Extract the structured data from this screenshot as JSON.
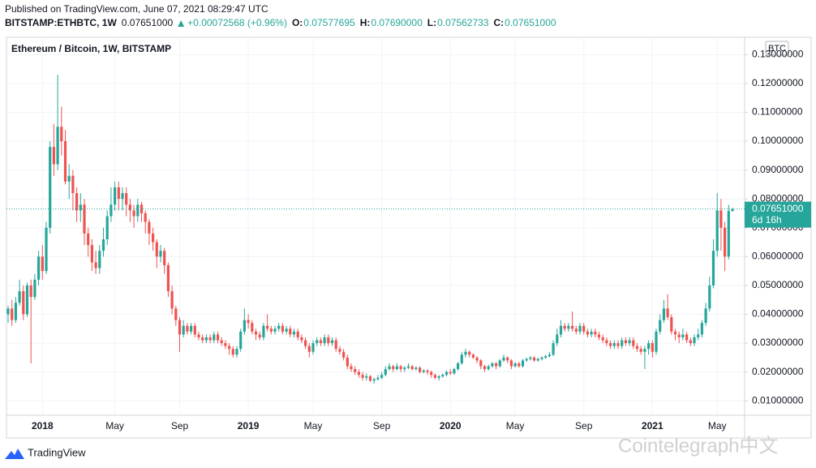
{
  "header": {
    "published": "Published on TradingView.com, June 07, 2021 08:29:47 UTC",
    "symbol": "BITSTAMP:ETHBTC, 1W",
    "last": "0.07651000",
    "change": "+0.00072568 (+0.96%)",
    "ohlc": [
      {
        "label": "O:",
        "value": "0.07577695"
      },
      {
        "label": "H:",
        "value": "0.07690000"
      },
      {
        "label": "L:",
        "value": "0.07562733"
      },
      {
        "label": "C:",
        "value": "0.07651000"
      }
    ]
  },
  "footer": {
    "brand": "TradingView",
    "watermark": "Cointelegraph中文"
  },
  "chart_data": {
    "type": "candlestick",
    "title": "Ethereum / Bitcoin, 1W, BITSTAMP",
    "currency": "BTC",
    "price_label": "0.07651000",
    "countdown": "6d 16h",
    "colors": {
      "up": "#26a69a",
      "down": "#ef5350"
    },
    "grid": true,
    "ylim": [
      0.005,
      0.136
    ],
    "yticks": [
      {
        "value": 0.01,
        "label": "0.01000000"
      },
      {
        "value": 0.02,
        "label": "0.02000000"
      },
      {
        "value": 0.03,
        "label": "0.03000000"
      },
      {
        "value": 0.04,
        "label": "0.04000000"
      },
      {
        "value": 0.05,
        "label": "0.05000000"
      },
      {
        "value": 0.06,
        "label": "0.06000000"
      },
      {
        "value": 0.07,
        "label": "0.07000000"
      },
      {
        "value": 0.08,
        "label": "0.08000000"
      },
      {
        "value": 0.09,
        "label": "0.09000000"
      },
      {
        "value": 0.1,
        "label": "0.10000000"
      },
      {
        "value": 0.11,
        "label": "0.11000000"
      },
      {
        "value": 0.12,
        "label": "0.12000000"
      },
      {
        "value": 0.13,
        "label": "0.13000000"
      }
    ],
    "xticks": [
      {
        "value": 9,
        "label": "2018"
      },
      {
        "value": 28,
        "label": "May"
      },
      {
        "value": 45,
        "label": "Sep"
      },
      {
        "value": 63,
        "label": "2019"
      },
      {
        "value": 80,
        "label": "May"
      },
      {
        "value": 98,
        "label": "Sep"
      },
      {
        "value": 116,
        "label": "2020"
      },
      {
        "value": 133,
        "label": "May"
      },
      {
        "value": 151,
        "label": "Sep"
      },
      {
        "value": 169,
        "label": "2021"
      },
      {
        "value": 186,
        "label": "May"
      }
    ],
    "categories": [
      null,
      null,
      null,
      null,
      null,
      null,
      null,
      null,
      null,
      null,
      null,
      null,
      null,
      null,
      null,
      null,
      null,
      null,
      null,
      null,
      null,
      null,
      null,
      null,
      null,
      null,
      null,
      null,
      null,
      null,
      null,
      null,
      null,
      null,
      null,
      null,
      null,
      null,
      null,
      null,
      null,
      null,
      null,
      null,
      null,
      null,
      null,
      null,
      null,
      null,
      null,
      null,
      null,
      null,
      null,
      null,
      null,
      null,
      null,
      null,
      null,
      null,
      null,
      null,
      null,
      null,
      null,
      null,
      null,
      null,
      null,
      null,
      null,
      null,
      null,
      null,
      null,
      null,
      null,
      null,
      null,
      null,
      null,
      null,
      null,
      null,
      null,
      null,
      null,
      null,
      null,
      null,
      null,
      null,
      null,
      null,
      null,
      null,
      null,
      null,
      null,
      null,
      null,
      null,
      null,
      null,
      null,
      null,
      null,
      null,
      null,
      null,
      null,
      null,
      null,
      null,
      null,
      null,
      null,
      null,
      null,
      null,
      null,
      null,
      null,
      null,
      null,
      null,
      null,
      null,
      null,
      null,
      null,
      null,
      null,
      null,
      null,
      null,
      null,
      null,
      null,
      null,
      null,
      null,
      null,
      null,
      null,
      null,
      null,
      null,
      null,
      null,
      null,
      null,
      null,
      null,
      null,
      null,
      null,
      null,
      null,
      null,
      null,
      null,
      null,
      null,
      null,
      null,
      null,
      null,
      null,
      null,
      null,
      null,
      null,
      null,
      null,
      null,
      null,
      null,
      null,
      null,
      null,
      null,
      null,
      null,
      null,
      null,
      null,
      null,
      null
    ],
    "open": [
      0.04,
      0.042,
      0.038,
      0.044,
      0.048,
      0.04,
      0.05,
      0.046,
      0.052,
      0.06,
      0.055,
      0.07,
      0.098,
      0.092,
      0.105,
      0.1,
      0.086,
      0.088,
      0.082,
      0.076,
      0.078,
      0.068,
      0.064,
      0.058,
      0.056,
      0.062,
      0.066,
      0.074,
      0.078,
      0.084,
      0.08,
      0.082,
      0.078,
      0.076,
      0.074,
      0.078,
      0.075,
      0.072,
      0.068,
      0.065,
      0.06,
      0.062,
      0.057,
      0.048,
      0.042,
      0.038,
      0.033,
      0.036,
      0.034,
      0.036,
      0.033,
      0.032,
      0.031,
      0.032,
      0.031,
      0.033,
      0.031,
      0.03,
      0.029,
      0.028,
      0.026,
      0.028,
      0.034,
      0.038,
      0.037,
      0.034,
      0.033,
      0.032,
      0.036,
      0.035,
      0.034,
      0.035,
      0.036,
      0.034,
      0.035,
      0.033,
      0.034,
      0.032,
      0.031,
      0.029,
      0.027,
      0.03,
      0.031,
      0.03,
      0.032,
      0.03,
      0.031,
      0.028,
      0.027,
      0.025,
      0.022,
      0.021,
      0.02,
      0.019,
      0.018,
      0.0185,
      0.017,
      0.0175,
      0.018,
      0.019,
      0.021,
      0.022,
      0.021,
      0.022,
      0.021,
      0.0215,
      0.022,
      0.021,
      0.0215,
      0.02,
      0.0205,
      0.02,
      0.019,
      0.018,
      0.0185,
      0.019,
      0.02,
      0.0195,
      0.021,
      0.023,
      0.026,
      0.027,
      0.026,
      0.025,
      0.024,
      0.022,
      0.021,
      0.022,
      0.023,
      0.022,
      0.024,
      0.025,
      0.024,
      0.022,
      0.023,
      0.022,
      0.024,
      0.0245,
      0.025,
      0.024,
      0.0245,
      0.025,
      0.0255,
      0.026,
      0.03,
      0.033,
      0.036,
      0.035,
      0.036,
      0.035,
      0.034,
      0.036,
      0.034,
      0.033,
      0.034,
      0.033,
      0.032,
      0.031,
      0.03,
      0.029,
      0.03,
      0.029,
      0.031,
      0.03,
      0.031,
      0.029,
      0.028,
      0.027,
      0.028,
      0.03,
      0.027,
      0.034,
      0.038,
      0.042,
      0.039,
      0.034,
      0.033,
      0.032,
      0.033,
      0.031,
      0.03,
      0.032,
      0.033,
      0.037,
      0.042,
      0.05,
      0.062,
      0.076,
      0.07,
      0.06,
      0.07577695
    ],
    "high": [
      0.043,
      0.045,
      0.046,
      0.052,
      0.05,
      0.051,
      0.052,
      0.054,
      0.062,
      0.064,
      0.072,
      0.1,
      0.106,
      0.123,
      0.112,
      0.104,
      0.092,
      0.09,
      0.084,
      0.082,
      0.08,
      0.07,
      0.066,
      0.062,
      0.064,
      0.07,
      0.076,
      0.084,
      0.086,
      0.086,
      0.084,
      0.084,
      0.08,
      0.078,
      0.08,
      0.079,
      0.076,
      0.073,
      0.07,
      0.066,
      0.064,
      0.063,
      0.058,
      0.05,
      0.043,
      0.039,
      0.038,
      0.037,
      0.037,
      0.037,
      0.034,
      0.033,
      0.033,
      0.033,
      0.034,
      0.034,
      0.032,
      0.031,
      0.03,
      0.029,
      0.029,
      0.035,
      0.042,
      0.04,
      0.038,
      0.035,
      0.034,
      0.037,
      0.04,
      0.036,
      0.036,
      0.037,
      0.037,
      0.036,
      0.036,
      0.035,
      0.035,
      0.033,
      0.032,
      0.03,
      0.031,
      0.032,
      0.032,
      0.033,
      0.033,
      0.032,
      0.032,
      0.029,
      0.028,
      0.026,
      0.023,
      0.022,
      0.021,
      0.02,
      0.0195,
      0.019,
      0.018,
      0.019,
      0.02,
      0.022,
      0.023,
      0.0225,
      0.023,
      0.0225,
      0.022,
      0.023,
      0.0225,
      0.022,
      0.022,
      0.021,
      0.021,
      0.0205,
      0.0195,
      0.019,
      0.0195,
      0.0205,
      0.021,
      0.0215,
      0.0235,
      0.027,
      0.028,
      0.0275,
      0.0265,
      0.0255,
      0.0245,
      0.0225,
      0.0225,
      0.0235,
      0.0235,
      0.0245,
      0.026,
      0.0255,
      0.0245,
      0.0235,
      0.0235,
      0.0245,
      0.025,
      0.0255,
      0.0255,
      0.025,
      0.0255,
      0.026,
      0.027,
      0.031,
      0.035,
      0.038,
      0.037,
      0.037,
      0.041,
      0.036,
      0.037,
      0.037,
      0.035,
      0.035,
      0.035,
      0.034,
      0.033,
      0.032,
      0.031,
      0.031,
      0.031,
      0.032,
      0.032,
      0.032,
      0.032,
      0.03,
      0.029,
      0.029,
      0.031,
      0.031,
      0.035,
      0.04,
      0.045,
      0.047,
      0.04,
      0.035,
      0.034,
      0.035,
      0.034,
      0.032,
      0.033,
      0.035,
      0.038,
      0.044,
      0.053,
      0.066,
      0.082,
      0.08,
      0.072,
      0.078,
      0.0769
    ],
    "low": [
      0.037,
      0.036,
      0.037,
      0.043,
      0.038,
      0.039,
      0.023,
      0.045,
      0.05,
      0.052,
      0.054,
      0.068,
      0.088,
      0.09,
      0.095,
      0.085,
      0.08,
      0.076,
      0.072,
      0.072,
      0.064,
      0.06,
      0.055,
      0.054,
      0.054,
      0.06,
      0.064,
      0.072,
      0.076,
      0.076,
      0.076,
      0.074,
      0.072,
      0.07,
      0.072,
      0.072,
      0.068,
      0.064,
      0.062,
      0.056,
      0.058,
      0.054,
      0.046,
      0.04,
      0.036,
      0.027,
      0.032,
      0.033,
      0.033,
      0.032,
      0.031,
      0.03,
      0.03,
      0.03,
      0.03,
      0.03,
      0.029,
      0.028,
      0.026,
      0.025,
      0.025,
      0.027,
      0.033,
      0.035,
      0.033,
      0.031,
      0.031,
      0.031,
      0.034,
      0.033,
      0.033,
      0.034,
      0.033,
      0.033,
      0.032,
      0.032,
      0.031,
      0.03,
      0.028,
      0.025,
      0.026,
      0.029,
      0.029,
      0.029,
      0.029,
      0.029,
      0.027,
      0.026,
      0.024,
      0.021,
      0.02,
      0.019,
      0.018,
      0.017,
      0.017,
      0.0165,
      0.016,
      0.017,
      0.0175,
      0.0185,
      0.0205,
      0.02,
      0.0205,
      0.02,
      0.02,
      0.021,
      0.0205,
      0.0205,
      0.0195,
      0.0195,
      0.019,
      0.018,
      0.0175,
      0.017,
      0.018,
      0.0185,
      0.019,
      0.019,
      0.0205,
      0.0225,
      0.025,
      0.025,
      0.0245,
      0.023,
      0.021,
      0.02,
      0.0205,
      0.0215,
      0.021,
      0.0215,
      0.0235,
      0.023,
      0.021,
      0.0215,
      0.0215,
      0.0215,
      0.0235,
      0.024,
      0.0235,
      0.0235,
      0.024,
      0.0245,
      0.025,
      0.0255,
      0.029,
      0.032,
      0.034,
      0.034,
      0.034,
      0.033,
      0.033,
      0.033,
      0.032,
      0.032,
      0.032,
      0.031,
      0.03,
      0.029,
      0.028,
      0.028,
      0.028,
      0.028,
      0.029,
      0.029,
      0.028,
      0.027,
      0.026,
      0.021,
      0.026,
      0.025,
      0.026,
      0.033,
      0.037,
      0.038,
      0.033,
      0.031,
      0.03,
      0.031,
      0.03,
      0.029,
      0.029,
      0.031,
      0.032,
      0.036,
      0.041,
      0.049,
      0.06,
      0.062,
      0.055,
      0.059,
      0.07562733
    ],
    "close": [
      0.042,
      0.038,
      0.044,
      0.048,
      0.04,
      0.05,
      0.046,
      0.052,
      0.06,
      0.055,
      0.07,
      0.098,
      0.092,
      0.105,
      0.1,
      0.086,
      0.088,
      0.082,
      0.076,
      0.078,
      0.068,
      0.064,
      0.058,
      0.056,
      0.062,
      0.066,
      0.074,
      0.078,
      0.084,
      0.08,
      0.082,
      0.078,
      0.076,
      0.074,
      0.078,
      0.075,
      0.072,
      0.068,
      0.065,
      0.06,
      0.062,
      0.057,
      0.048,
      0.042,
      0.038,
      0.033,
      0.036,
      0.034,
      0.036,
      0.033,
      0.032,
      0.031,
      0.032,
      0.031,
      0.033,
      0.031,
      0.03,
      0.029,
      0.028,
      0.026,
      0.028,
      0.034,
      0.038,
      0.037,
      0.034,
      0.033,
      0.032,
      0.036,
      0.035,
      0.034,
      0.035,
      0.036,
      0.034,
      0.035,
      0.033,
      0.034,
      0.032,
      0.031,
      0.029,
      0.027,
      0.03,
      0.031,
      0.03,
      0.032,
      0.03,
      0.031,
      0.028,
      0.027,
      0.025,
      0.022,
      0.021,
      0.02,
      0.019,
      0.018,
      0.0185,
      0.017,
      0.0175,
      0.018,
      0.019,
      0.021,
      0.022,
      0.021,
      0.022,
      0.021,
      0.0215,
      0.022,
      0.021,
      0.0215,
      0.02,
      0.0205,
      0.02,
      0.019,
      0.018,
      0.0185,
      0.019,
      0.02,
      0.0195,
      0.021,
      0.023,
      0.026,
      0.027,
      0.026,
      0.025,
      0.024,
      0.022,
      0.021,
      0.022,
      0.023,
      0.022,
      0.024,
      0.025,
      0.024,
      0.022,
      0.023,
      0.022,
      0.024,
      0.0245,
      0.025,
      0.024,
      0.0245,
      0.025,
      0.0255,
      0.026,
      0.03,
      0.033,
      0.036,
      0.035,
      0.036,
      0.035,
      0.034,
      0.036,
      0.034,
      0.033,
      0.034,
      0.033,
      0.032,
      0.031,
      0.03,
      0.029,
      0.03,
      0.029,
      0.031,
      0.03,
      0.031,
      0.029,
      0.028,
      0.027,
      0.028,
      0.03,
      0.027,
      0.034,
      0.038,
      0.042,
      0.039,
      0.034,
      0.033,
      0.032,
      0.033,
      0.031,
      0.03,
      0.032,
      0.033,
      0.037,
      0.042,
      0.05,
      0.062,
      0.076,
      0.07,
      0.06,
      0.0758,
      0.07651
    ]
  }
}
